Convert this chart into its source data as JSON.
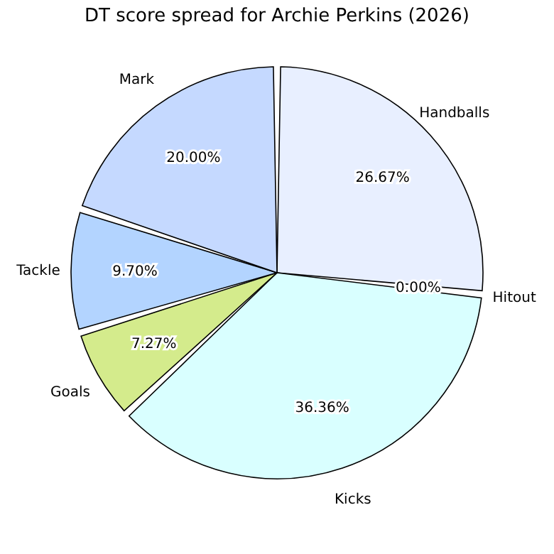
{
  "chart_data": {
    "type": "pie",
    "title": "DT score spread for Archie Perkins (2026)",
    "categories": [
      "Handballs",
      "Hitout",
      "Kicks",
      "Goals",
      "Tackle",
      "Mark"
    ],
    "values": [
      26.67,
      0.0,
      36.36,
      7.27,
      9.7,
      20.0
    ],
    "colors": [
      "#e8efff",
      "#e0e8ff",
      "#d9ffff",
      "#d4eb8c",
      "#b3d4ff",
      "#c5d9ff"
    ],
    "value_labels": [
      "26.67%",
      "0.00%",
      "36.36%",
      "7.27%",
      "9.70%",
      "20.00%"
    ]
  }
}
